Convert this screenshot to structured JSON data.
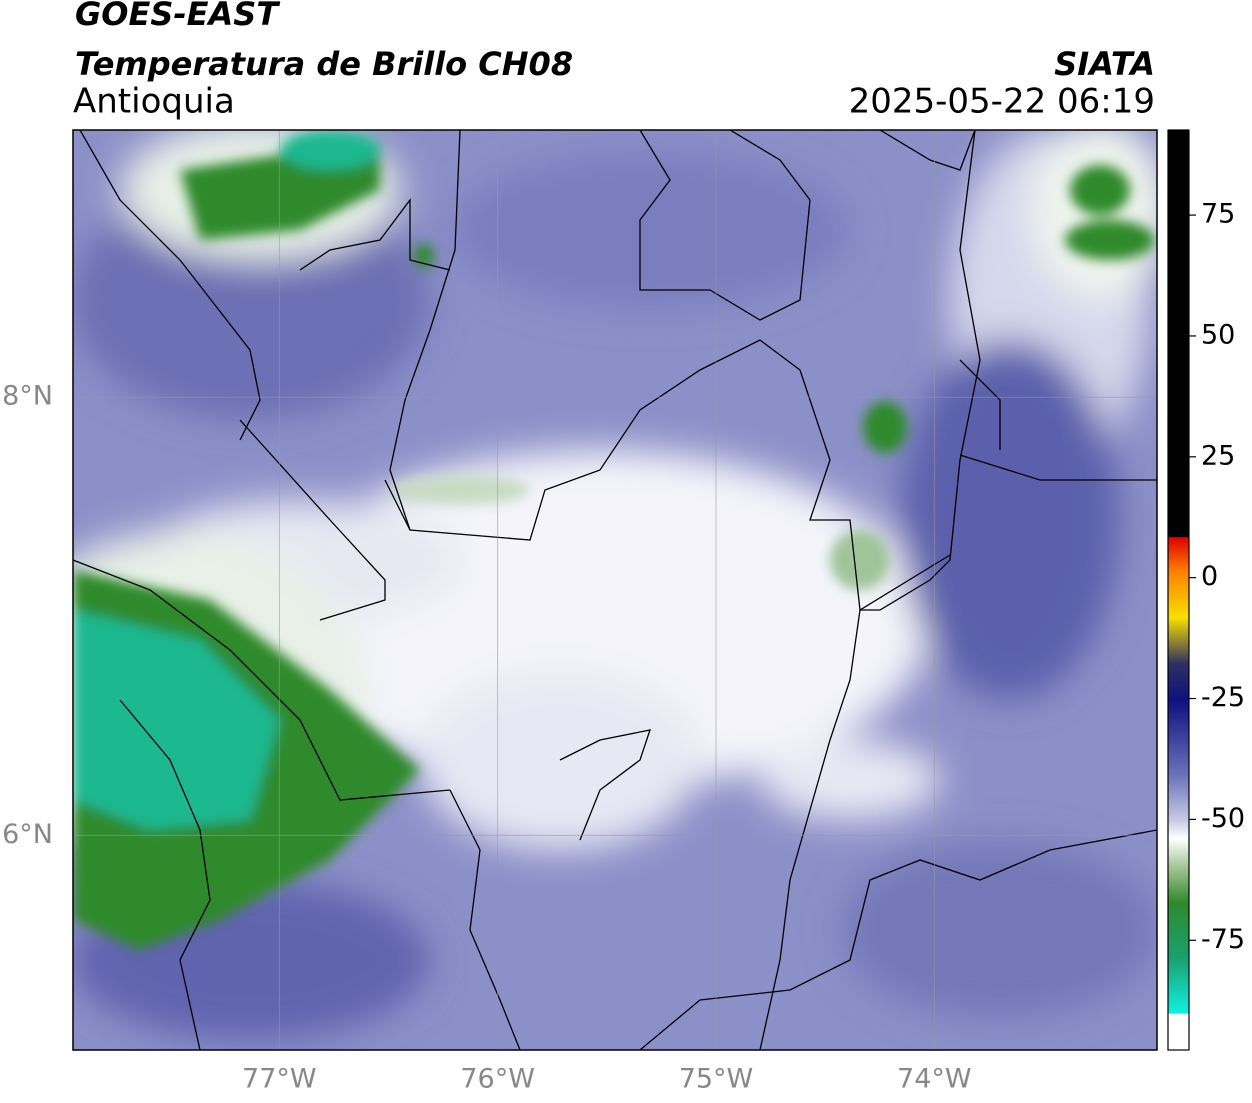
{
  "header": {
    "title": "GOES-EAST",
    "subtitle": "Temperatura de Brillo CH08",
    "region": "Antioquia",
    "source": "SIATA",
    "datetime": "2025-05-22 06:19"
  },
  "map": {
    "lat_range": [
      5.02,
      9.22
    ],
    "lon_range": [
      -77.945,
      -72.98
    ],
    "lat_ticks": [
      {
        "value": 8,
        "label": "8°N"
      },
      {
        "value": 6,
        "label": "6°N"
      }
    ],
    "lon_ticks": [
      {
        "value": -77,
        "label": "77°W"
      },
      {
        "value": -76,
        "label": "76°W"
      },
      {
        "value": -75,
        "label": "75°W"
      },
      {
        "value": -74,
        "label": "74°W"
      }
    ],
    "grid": true
  },
  "colorbar": {
    "range": [
      -97.7,
      92.6
    ],
    "ticks": [
      75,
      50,
      25,
      0,
      -25,
      -50,
      -75
    ]
  }
}
